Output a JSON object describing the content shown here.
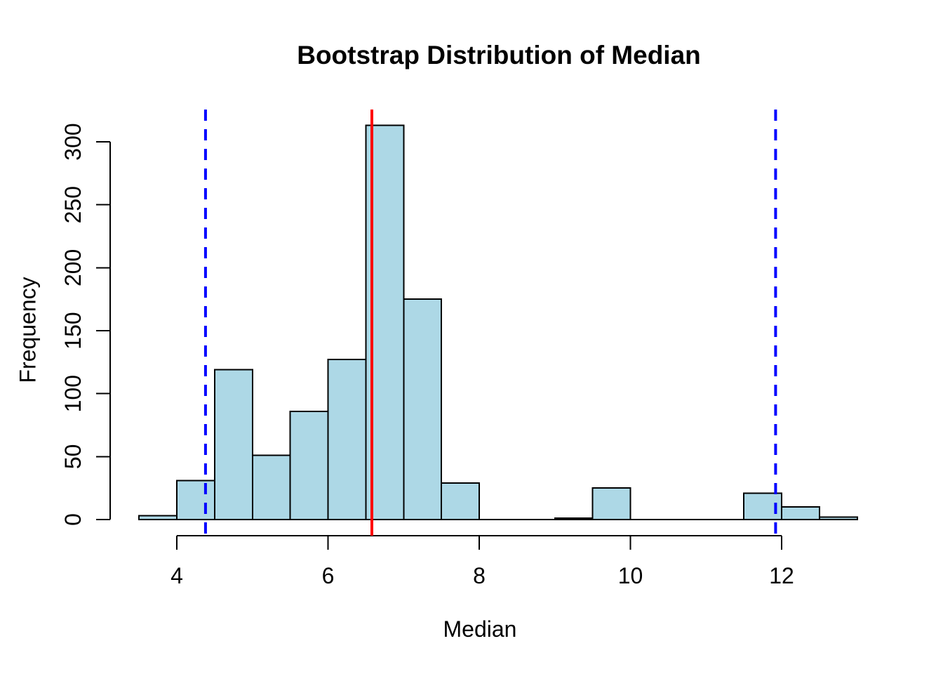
{
  "figure": {
    "title": "Bootstrap Distribution of Median",
    "xlabel": "Median",
    "ylabel": "Frequency"
  },
  "chart_data": {
    "type": "bar",
    "subtype": "histogram",
    "title": "Bootstrap Distribution of Median",
    "xlabel": "Median",
    "ylabel": "Frequency",
    "bin_width": 0.5,
    "bin_edges": [
      3.5,
      4.0,
      4.5,
      5.0,
      5.5,
      6.0,
      6.5,
      7.0,
      7.5,
      8.0,
      8.5,
      9.0,
      9.5,
      10.0,
      10.5,
      11.0,
      11.5,
      12.0,
      12.5,
      13.0
    ],
    "counts": [
      3,
      31,
      119,
      51,
      86,
      127,
      313,
      175,
      29,
      0,
      0,
      1,
      25,
      0,
      0,
      0,
      21,
      10,
      2
    ],
    "x_ticks": [
      4,
      6,
      8,
      10,
      12
    ],
    "y_ticks": [
      0,
      50,
      100,
      150,
      200,
      250,
      300
    ],
    "xlim": [
      3.1,
      13.4
    ],
    "ylim": [
      0,
      325
    ],
    "grid": false,
    "legend": false,
    "bar_fill": "#ADD8E6",
    "bar_stroke": "#000000",
    "axis_color": "#000000",
    "vlines": [
      {
        "name": "observed-median-line",
        "x": 6.58,
        "color": "#FF0000",
        "style": "solid"
      },
      {
        "name": "ci-lower-line",
        "x": 4.38,
        "color": "#0000FF",
        "style": "dashed"
      },
      {
        "name": "ci-upper-line",
        "x": 11.92,
        "color": "#0000FF",
        "style": "dashed"
      }
    ]
  }
}
